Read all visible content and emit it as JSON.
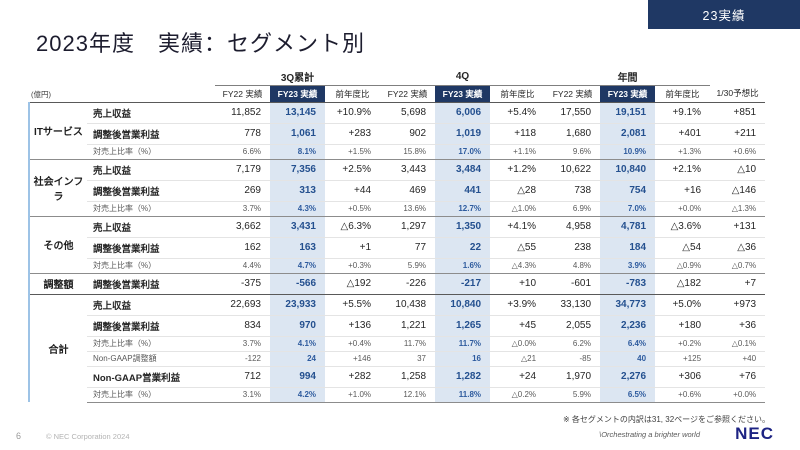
{
  "slide": {
    "badge": "23実績",
    "title": "2023年度　実績：セグメント別",
    "footnote": "※ 各セグメントの内訳は31, 32ページをご参照ください。",
    "page_number": "6",
    "copyright": "© NEC Corporation 2024",
    "tagline": "\\Orchestrating a brighter world",
    "logo": "NEC"
  },
  "table": {
    "unit": "(億円)",
    "groups": [
      {
        "label": "3Q累計",
        "span": 3
      },
      {
        "label": "4Q",
        "span": 3
      },
      {
        "label": "年間",
        "span": 3
      },
      {
        "label": "",
        "span": 1
      }
    ],
    "columns": [
      "FY22 実績",
      "FY23 実績",
      "前年度比",
      "FY22 実績",
      "FY23 実績",
      "前年度比",
      "FY22 実績",
      "FY23 実績",
      "前年度比",
      "1/30予想比"
    ],
    "rows": [
      {
        "segment": "ITサービス",
        "segspan": 3,
        "metric": "売上収益",
        "type": "revenue",
        "values": [
          "11,852",
          "13,145",
          "+10.9%",
          "5,698",
          "6,006",
          "+5.4%",
          "17,550",
          "19,151",
          "+9.1%",
          "+851"
        ]
      },
      {
        "metric": "調整後営業利益",
        "type": "profit",
        "values": [
          "778",
          "1,061",
          "+283",
          "902",
          "1,019",
          "+118",
          "1,680",
          "2,081",
          "+401",
          "+211"
        ]
      },
      {
        "metric": "対売上比率（%）",
        "type": "ratio",
        "values": [
          "6.6%",
          "8.1%",
          "+1.5%",
          "15.8%",
          "17.0%",
          "+1.1%",
          "9.6%",
          "10.9%",
          "+1.3%",
          "+0.6%"
        ]
      },
      {
        "segment": "社会インフラ",
        "segspan": 3,
        "metric": "売上収益",
        "type": "revenue",
        "values": [
          "7,179",
          "7,356",
          "+2.5%",
          "3,443",
          "3,484",
          "+1.2%",
          "10,622",
          "10,840",
          "+2.1%",
          "△10"
        ]
      },
      {
        "metric": "調整後営業利益",
        "type": "profit",
        "values": [
          "269",
          "313",
          "+44",
          "469",
          "441",
          "△28",
          "738",
          "754",
          "+16",
          "△146"
        ]
      },
      {
        "metric": "対売上比率（%）",
        "type": "ratio",
        "values": [
          "3.7%",
          "4.3%",
          "+0.5%",
          "13.6%",
          "12.7%",
          "△1.0%",
          "6.9%",
          "7.0%",
          "+0.0%",
          "△1.3%"
        ]
      },
      {
        "segment": "その他",
        "segspan": 3,
        "metric": "売上収益",
        "type": "revenue",
        "values": [
          "3,662",
          "3,431",
          "△6.3%",
          "1,297",
          "1,350",
          "+4.1%",
          "4,958",
          "4,781",
          "△3.6%",
          "+131"
        ]
      },
      {
        "metric": "調整後営業利益",
        "type": "profit",
        "values": [
          "162",
          "163",
          "+1",
          "77",
          "22",
          "△55",
          "238",
          "184",
          "△54",
          "△36"
        ]
      },
      {
        "metric": "対売上比率（%）",
        "type": "ratio",
        "values": [
          "4.4%",
          "4.7%",
          "+0.3%",
          "5.9%",
          "1.6%",
          "△4.3%",
          "4.8%",
          "3.9%",
          "△0.9%",
          "△0.7%"
        ]
      },
      {
        "segment": "調整額",
        "segspan": 1,
        "metric": "調整後営業利益",
        "type": "profit",
        "values": [
          "-375",
          "-566",
          "△192",
          "-226",
          "-217",
          "+10",
          "-601",
          "-783",
          "△182",
          "+7"
        ]
      },
      {
        "segment": "合計",
        "segspan": 6,
        "metric": "売上収益",
        "type": "revenue",
        "values": [
          "22,693",
          "23,933",
          "+5.5%",
          "10,438",
          "10,840",
          "+3.9%",
          "33,130",
          "34,773",
          "+5.0%",
          "+973"
        ]
      },
      {
        "metric": "調整後営業利益",
        "type": "profit",
        "values": [
          "834",
          "970",
          "+136",
          "1,221",
          "1,265",
          "+45",
          "2,055",
          "2,236",
          "+180",
          "+36"
        ]
      },
      {
        "metric": "対売上比率（%）",
        "type": "ratio",
        "values": [
          "3.7%",
          "4.1%",
          "+0.4%",
          "11.7%",
          "11.7%",
          "△0.0%",
          "6.2%",
          "6.4%",
          "+0.2%",
          "△0.1%"
        ]
      },
      {
        "metric": "Non-GAAP調整額",
        "type": "nongaap_adj",
        "values": [
          "-122",
          "24",
          "+146",
          "37",
          "16",
          "△21",
          "-85",
          "40",
          "+125",
          "+40"
        ]
      },
      {
        "metric": "Non-GAAP営業利益",
        "type": "nongaap",
        "values": [
          "712",
          "994",
          "+282",
          "1,258",
          "1,282",
          "+24",
          "1,970",
          "2,276",
          "+306",
          "+76"
        ]
      },
      {
        "metric": "対売上比率（%）",
        "type": "ratio",
        "values": [
          "3.1%",
          "4.2%",
          "+1.0%",
          "12.1%",
          "11.8%",
          "△0.2%",
          "5.9%",
          "6.5%",
          "+0.6%",
          "+0.0%"
        ]
      }
    ]
  }
}
